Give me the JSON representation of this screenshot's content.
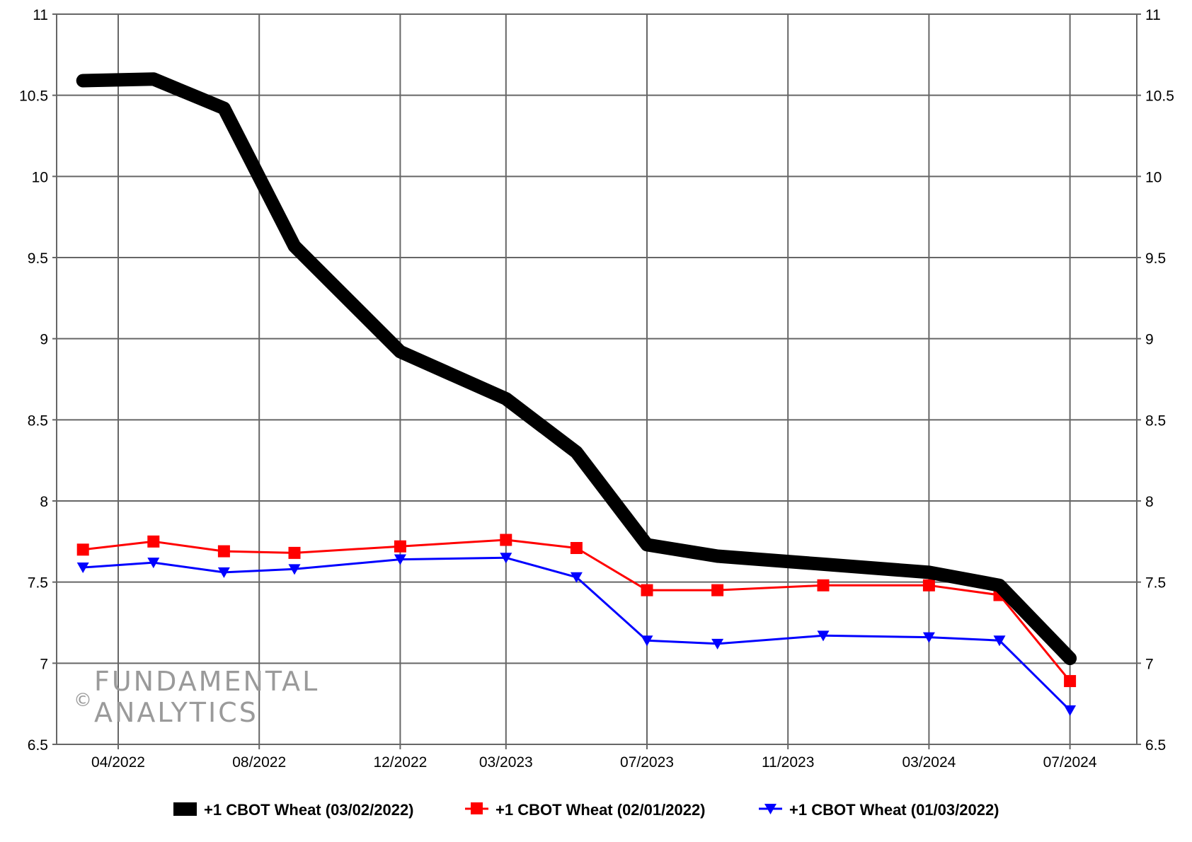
{
  "chart_data": {
    "type": "line",
    "x_tick_labels": [
      "04/2022",
      "08/2022",
      "12/2022",
      "03/2023",
      "07/2023",
      "11/2023",
      "03/2024",
      "07/2024"
    ],
    "y_ticks": [
      "6.5",
      "7",
      "7.5",
      "8",
      "8.5",
      "9",
      "9.5",
      "10",
      "10.5",
      "11"
    ],
    "ylim": [
      6.5,
      11
    ],
    "y_axis_right": true,
    "grid": true,
    "legend_position": "bottom",
    "x": [
      "2022-03",
      "2022-05",
      "2022-07",
      "2022-09",
      "2022-12",
      "2023-03",
      "2023-05",
      "2023-07",
      "2023-09",
      "2023-12",
      "2024-03",
      "2024-05",
      "2024-07"
    ],
    "series": [
      {
        "name": "+1 CBOT Wheat (03/02/2022)",
        "color": "#000000",
        "marker": "none",
        "values": [
          10.59,
          10.6,
          10.42,
          9.57,
          8.92,
          8.63,
          8.3,
          7.73,
          7.66,
          7.61,
          7.56,
          7.48,
          7.03
        ]
      },
      {
        "name": "+1 CBOT Wheat (02/01/2022)",
        "color": "#ff0000",
        "marker": "square",
        "values": [
          7.7,
          7.75,
          7.69,
          7.68,
          7.72,
          7.76,
          7.71,
          7.45,
          7.45,
          7.48,
          7.48,
          7.42,
          6.89
        ]
      },
      {
        "name": "+1 CBOT Wheat (01/03/2022)",
        "color": "#0000ff",
        "marker": "triangle-down",
        "values": [
          7.59,
          7.62,
          7.56,
          7.58,
          7.64,
          7.65,
          7.53,
          7.14,
          7.12,
          7.17,
          7.16,
          7.14,
          6.71
        ]
      }
    ]
  },
  "watermark": {
    "copyright_symbol": "©",
    "line1": "FUNDAMENTAL",
    "line2": "ANALYTICS"
  }
}
